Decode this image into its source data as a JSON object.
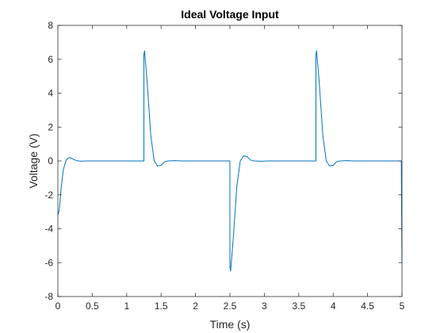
{
  "chart_data": {
    "type": "line",
    "title": "Ideal Voltage Input",
    "xlabel": "Time (s)",
    "ylabel": "Voltage (V)",
    "xlim": [
      0,
      5
    ],
    "ylim": [
      -8,
      8
    ],
    "xticks": [
      0,
      0.5,
      1,
      1.5,
      2,
      2.5,
      3,
      3.5,
      4,
      4.5,
      5
    ],
    "xtick_labels": [
      "0",
      "0.5",
      "1",
      "1.5",
      "2",
      "2.5",
      "3",
      "3.5",
      "4",
      "4.5",
      "5"
    ],
    "yticks": [
      -8,
      -6,
      -4,
      -2,
      0,
      2,
      4,
      6,
      8
    ],
    "ytick_labels": [
      "-8",
      "-6",
      "-4",
      "-2",
      "0",
      "2",
      "4",
      "6",
      "8"
    ],
    "grid": false,
    "box": true,
    "series": [
      {
        "color": "#0072BD",
        "x": [
          0,
          0.02,
          0.05,
          0.08,
          0.12,
          0.16,
          0.2,
          0.25,
          0.3,
          0.35,
          0.4,
          0.5,
          1.25,
          1.25,
          1.26,
          1.3,
          1.35,
          1.4,
          1.45,
          1.5,
          1.55,
          1.6,
          1.7,
          1.8,
          2.5,
          2.5,
          2.51,
          2.55,
          2.6,
          2.65,
          2.7,
          2.75,
          2.8,
          2.85,
          2.95,
          3.05,
          3.75,
          3.75,
          3.76,
          3.8,
          3.85,
          3.9,
          3.95,
          4.0,
          4.05,
          4.1,
          4.2,
          4.3,
          4.99,
          5.0
        ],
        "y": [
          -3.2,
          -2.9,
          -1.5,
          -0.5,
          0.05,
          0.2,
          0.15,
          0.05,
          0.0,
          -0.02,
          0.0,
          0.0,
          0.0,
          6.3,
          6.5,
          4.5,
          1.5,
          0.0,
          -0.3,
          -0.25,
          -0.05,
          0.0,
          0.02,
          0.0,
          0.0,
          -6.3,
          -6.5,
          -4.5,
          -1.5,
          0.0,
          0.3,
          0.25,
          0.05,
          0.0,
          -0.02,
          0.0,
          0.0,
          6.3,
          6.5,
          4.5,
          1.5,
          0.0,
          -0.3,
          -0.25,
          -0.05,
          0.0,
          0.02,
          0.0,
          0.0,
          -6.0
        ]
      }
    ]
  }
}
